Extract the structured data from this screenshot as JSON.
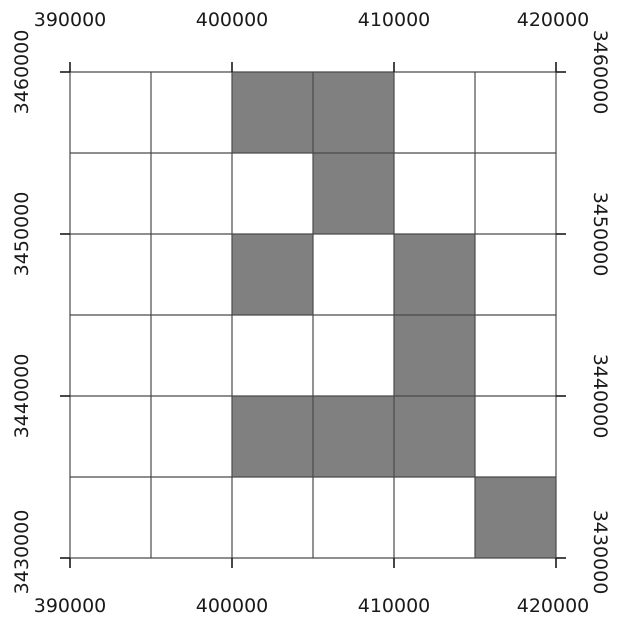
{
  "map": {
    "x_ticks": [
      "390000",
      "400000",
      "410000",
      "420000"
    ],
    "y_ticks": [
      "3430000",
      "3440000",
      "3450000",
      "3460000"
    ],
    "x_range": [
      390000,
      420000
    ],
    "y_range": [
      3430000,
      3460000
    ],
    "cell_size": 5000,
    "columns": 6,
    "rows": 6,
    "colors": {
      "filled": "#808080",
      "empty": "#ffffff",
      "grid": "#4a4a4a"
    },
    "filled_cells": [
      {
        "col": 2,
        "row": 0
      },
      {
        "col": 3,
        "row": 0
      },
      {
        "col": 3,
        "row": 1
      },
      {
        "col": 2,
        "row": 2
      },
      {
        "col": 4,
        "row": 2
      },
      {
        "col": 4,
        "row": 3
      },
      {
        "col": 2,
        "row": 4
      },
      {
        "col": 3,
        "row": 4
      },
      {
        "col": 4,
        "row": 4
      },
      {
        "col": 5,
        "row": 5
      }
    ]
  }
}
